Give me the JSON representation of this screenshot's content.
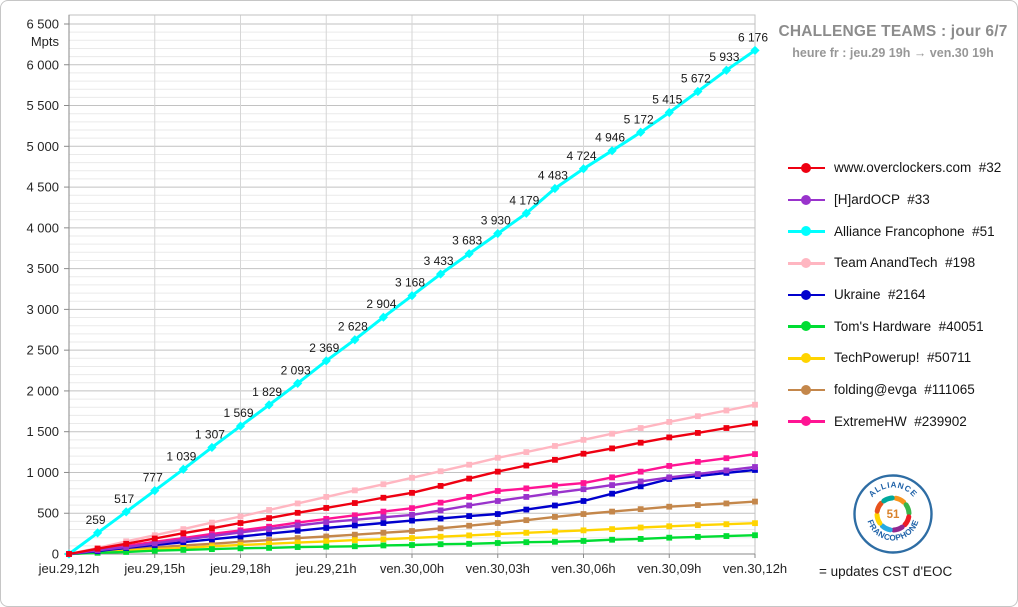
{
  "header": {
    "title": "CHALLENGE TEAMS : jour 6/7",
    "subtitle": "heure fr : jeu.29 19h → ven.30 19h"
  },
  "footnote": "= updates CST d'EOC",
  "logo": {
    "top_text": "ALLIANCE",
    "bottom_text": "FRANCOPHONE",
    "center_text": "51",
    "ring_color": "#2e6da4",
    "center_color": "#d9822b",
    "ring_segment_colors": [
      "#f7941d",
      "#39b54a",
      "#ed1c24",
      "#92278f",
      "#27aae1",
      "#ffd400",
      "#e8521c",
      "#00a99d"
    ]
  },
  "chart_data": {
    "type": "line",
    "title": "CHALLENGE TEAMS : jour 6/7",
    "ylabel": "Mpts",
    "ylim": [
      0,
      6500
    ],
    "y_major_step": 500,
    "y_minor_step": 100,
    "grid": true,
    "legend_position": "right",
    "x_hours": [
      0,
      1,
      2,
      3,
      4,
      5,
      6,
      7,
      8,
      9,
      10,
      11,
      12,
      13,
      14,
      15,
      16,
      17,
      18,
      19,
      20,
      21,
      22,
      23,
      24
    ],
    "x_tick_hours": [
      0,
      3,
      6,
      9,
      12,
      15,
      18,
      21,
      24
    ],
    "x_ticklabels": [
      "jeu.29,12h",
      "jeu.29,15h",
      "jeu.29,18h",
      "jeu.29,21h",
      "ven.30,00h",
      "ven.30,03h",
      "ven.30,06h",
      "ven.30,09h",
      "ven.30,12h"
    ],
    "y_ticklabels": [
      "6 500",
      "6 000",
      "5 500",
      "5 000",
      "4 500",
      "4 000",
      "3 500",
      "3 000",
      "2 500",
      "2 000",
      "1 500",
      "1 000",
      "500",
      "0"
    ],
    "series": [
      {
        "name": "www.overclockers.com",
        "rank": "#32",
        "color": "#ee0011",
        "marker": "square",
        "values": [
          0,
          65,
          125,
          190,
          255,
          315,
          380,
          440,
          505,
          565,
          625,
          690,
          750,
          835,
          925,
          1010,
          1085,
          1155,
          1230,
          1295,
          1365,
          1430,
          1485,
          1545,
          1600
        ]
      },
      {
        "name": "[H]ardOCP",
        "rank": "#33",
        "color": "#9933cc",
        "marker": "square",
        "values": [
          0,
          45,
          85,
          130,
          175,
          220,
          265,
          305,
          350,
          390,
          420,
          450,
          480,
          535,
          595,
          650,
          700,
          750,
          795,
          845,
          890,
          940,
          980,
          1025,
          1067
        ]
      },
      {
        "name": "Alliance Francophone",
        "rank": "#51",
        "color": "#00ffff",
        "marker": "diamond",
        "data_labels": true,
        "values": [
          0,
          259,
          517,
          777,
          1039,
          1307,
          1569,
          1829,
          2093,
          2369,
          2628,
          2904,
          3168,
          3433,
          3683,
          3930,
          4179,
          4483,
          4724,
          4946,
          5172,
          5415,
          5672,
          5933,
          6176
        ]
      },
      {
        "name": "Team AnandTech",
        "rank": "#198",
        "color": "#ffb6c1",
        "marker": "square",
        "values": [
          0,
          75,
          155,
          230,
          305,
          385,
          460,
          540,
          620,
          700,
          780,
          855,
          935,
          1015,
          1095,
          1180,
          1250,
          1325,
          1400,
          1475,
          1545,
          1620,
          1690,
          1760,
          1831
        ]
      },
      {
        "name": "Ukraine",
        "rank": "#2164",
        "color": "#0000cd",
        "marker": "square",
        "values": [
          0,
          35,
          75,
          110,
          145,
          180,
          215,
          250,
          285,
          320,
          350,
          380,
          410,
          435,
          465,
          490,
          545,
          595,
          650,
          740,
          830,
          920,
          955,
          995,
          1031
        ]
      },
      {
        "name": "Tom's Hardware",
        "rank": "#40051",
        "color": "#00dd33",
        "marker": "square",
        "values": [
          0,
          15,
          25,
          40,
          50,
          60,
          70,
          75,
          85,
          90,
          95,
          105,
          110,
          120,
          125,
          135,
          145,
          150,
          160,
          175,
          185,
          200,
          210,
          220,
          230
        ]
      },
      {
        "name": "TechPowerup!",
        "rank": "#50711",
        "color": "#ffd400",
        "marker": "square",
        "values": [
          0,
          20,
          40,
          60,
          75,
          95,
          110,
          125,
          140,
          155,
          170,
          180,
          196,
          212,
          228,
          245,
          260,
          275,
          290,
          305,
          325,
          340,
          353,
          365,
          378
        ]
      },
      {
        "name": "folding@evga",
        "rank": "#111065",
        "color": "#c4874b",
        "marker": "square",
        "values": [
          0,
          25,
          55,
          80,
          105,
          125,
          150,
          170,
          195,
          215,
          237,
          260,
          282,
          315,
          347,
          380,
          415,
          455,
          490,
          520,
          550,
          580,
          600,
          620,
          643
        ]
      },
      {
        "name": "ExtremeHW",
        "rank": "#239902",
        "color": "#ff1493",
        "marker": "square",
        "values": [
          0,
          50,
          100,
          150,
          195,
          245,
          290,
          335,
          385,
          430,
          475,
          520,
          562,
          630,
          700,
          773,
          805,
          840,
          870,
          940,
          1010,
          1080,
          1130,
          1175,
          1225
        ]
      }
    ]
  }
}
